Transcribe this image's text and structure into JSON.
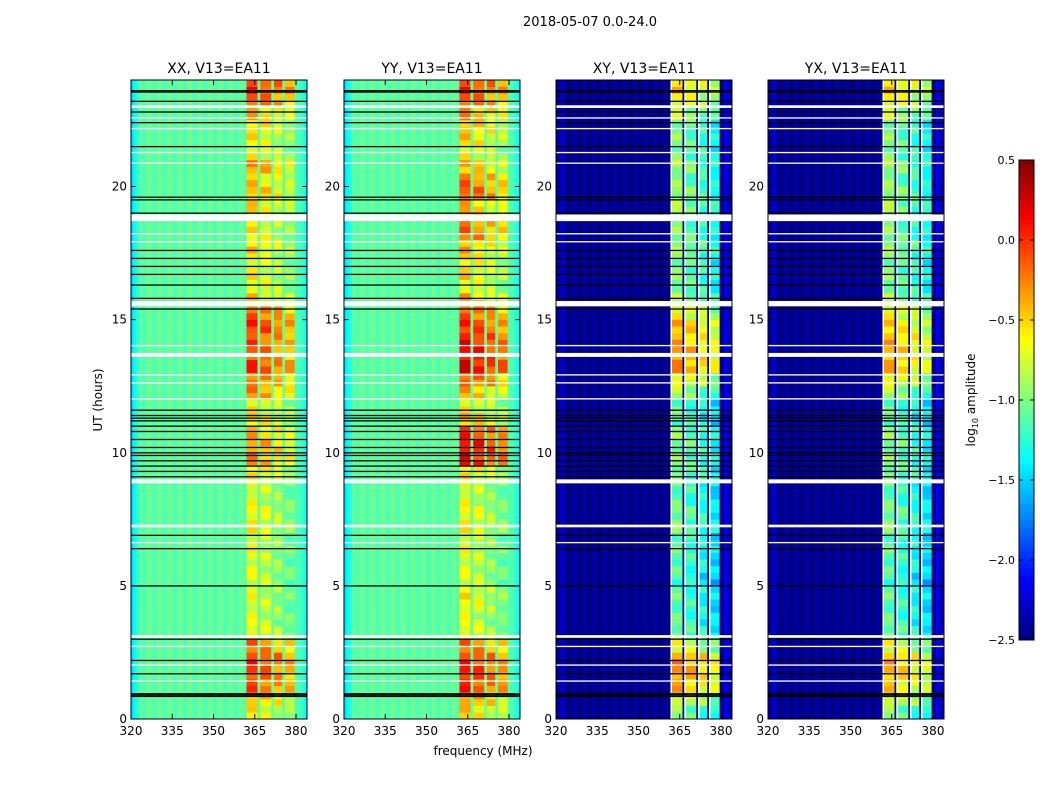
{
  "chart_data": {
    "type": "heatmap",
    "suptitle": "2018-05-07 0.0-24.0",
    "xlabel": "frequency (MHz)",
    "ylabel": "UT (hours)",
    "xlim": [
      320,
      384
    ],
    "ylim": [
      0,
      24
    ],
    "xticks": [
      320,
      335,
      350,
      365,
      380
    ],
    "xtick_labels": [
      "320",
      "335",
      "350",
      "365",
      "380"
    ],
    "yticks": [
      0,
      5,
      10,
      15,
      20
    ],
    "ytick_labels": [
      "0",
      "5",
      "10",
      "15",
      "20"
    ],
    "colormap": "jet",
    "colorbar": {
      "label_main": "log",
      "label_sub": "10",
      "label_rest": " amplitude",
      "range": [
        -2.5,
        0.5
      ],
      "ticks": [
        0.5,
        0.0,
        -0.5,
        -1.0,
        -1.5,
        -2.0,
        -2.5
      ],
      "tick_labels": [
        "0.5",
        "0.0",
        "−0.5",
        "−1.0",
        "−1.5",
        "−2.0",
        "−2.5"
      ]
    },
    "rfi_subbands_mhz": [
      [
        362,
        366
      ],
      [
        367,
        371
      ],
      [
        372,
        375
      ],
      [
        376,
        379.5
      ]
    ],
    "time_bin_hours": 0.5,
    "flagged_white_hours": [
      [
        22.95,
        23.05
      ],
      [
        22.55,
        22.6
      ],
      [
        22.15,
        22.2
      ],
      [
        21.25,
        21.3
      ],
      [
        20.85,
        20.9
      ],
      [
        18.7,
        18.95
      ],
      [
        18.2,
        18.25
      ],
      [
        17.9,
        17.95
      ],
      [
        15.5,
        15.7
      ],
      [
        14.0,
        14.05
      ],
      [
        13.6,
        13.75
      ],
      [
        12.9,
        12.95
      ],
      [
        12.6,
        12.65
      ],
      [
        12.0,
        12.05
      ],
      [
        8.85,
        9.0
      ],
      [
        7.2,
        7.3
      ],
      [
        6.6,
        6.65
      ],
      [
        3.05,
        3.15
      ],
      [
        2.7,
        2.75
      ],
      [
        2.0,
        2.05
      ],
      [
        1.4,
        1.45
      ]
    ],
    "flagged_black_hours": [
      23.6,
      23.55,
      23.2,
      22.8,
      22.4,
      21.5,
      19.6,
      19.5,
      19.0,
      17.6,
      17.3,
      17.0,
      16.7,
      16.3,
      15.8,
      15.4,
      11.6,
      11.4,
      11.3,
      11.2,
      11.0,
      10.8,
      10.5,
      10.2,
      10.0,
      9.9,
      9.7,
      9.5,
      9.3,
      9.1,
      6.9,
      6.4,
      5.0,
      3.0,
      2.2,
      1.7,
      0.95,
      0.9,
      0.85
    ],
    "panels": [
      {
        "title": "XX, V13=EA11",
        "background": -1.1,
        "edge": -1.45,
        "rfi": [
          -0.6,
          -0.4,
          -0.1,
          -0.05,
          0.0,
          -0.2,
          -0.6,
          -0.7,
          -0.7,
          -0.7,
          -0.7,
          -0.7,
          -0.7,
          -0.7,
          -0.6,
          -0.6,
          -0.7,
          -0.7,
          -0.5,
          -0.3,
          -0.3,
          -0.4,
          -0.5,
          -0.6,
          -0.3,
          -0.2,
          0.0,
          -0.1,
          -0.1,
          0.0,
          -0.1,
          -0.5,
          -0.6,
          -0.6,
          -0.6,
          -0.5,
          -0.6,
          -0.6,
          -0.5,
          -0.4,
          -0.5,
          -0.3,
          -0.6,
          -0.6,
          -0.5,
          -0.4,
          -0.1,
          0.0
        ]
      },
      {
        "title": "YY, V13=EA11",
        "background": -1.1,
        "edge": -1.45,
        "rfi": [
          -0.5,
          -0.3,
          0.0,
          0.05,
          0.0,
          -0.2,
          -0.6,
          -0.7,
          -0.6,
          -0.6,
          -0.7,
          -0.7,
          -0.7,
          -0.7,
          -0.6,
          -0.6,
          -0.7,
          -0.7,
          -0.5,
          0.1,
          0.15,
          0.0,
          -0.4,
          -0.6,
          -0.4,
          -0.1,
          0.2,
          0.15,
          0.1,
          0.0,
          -0.1,
          -0.4,
          -0.6,
          -0.5,
          -0.5,
          -0.4,
          -0.2,
          -0.2,
          -0.4,
          -0.1,
          -0.2,
          -0.4,
          -0.6,
          -0.5,
          -0.4,
          -0.3,
          -0.1,
          0.0
        ]
      },
      {
        "title": "XY, V13=EA11",
        "background": -2.45,
        "edge": -2.45,
        "rfi": [
          -1.0,
          -0.7,
          -0.4,
          -0.3,
          -0.3,
          -0.7,
          -1.0,
          -1.1,
          -1.1,
          -1.1,
          -1.2,
          -1.1,
          -1.1,
          -1.1,
          -1.0,
          -1.0,
          -1.1,
          -1.1,
          -1.0,
          -1.0,
          -1.0,
          -1.0,
          -1.1,
          -1.1,
          -0.9,
          -0.6,
          -0.3,
          -0.3,
          -0.4,
          -0.4,
          -0.6,
          -0.9,
          -1.0,
          -1.0,
          -1.0,
          -0.9,
          -1.0,
          -1.0,
          -0.9,
          -0.9,
          -1.0,
          -0.9,
          -1.0,
          -1.0,
          -1.0,
          -0.8,
          -0.6,
          -0.5
        ]
      },
      {
        "title": "YX, V13=EA11",
        "background": -2.45,
        "edge": -2.45,
        "rfi": [
          -1.0,
          -0.7,
          -0.5,
          -0.4,
          -0.4,
          -0.7,
          -1.0,
          -1.1,
          -1.1,
          -1.1,
          -1.2,
          -1.1,
          -1.1,
          -1.1,
          -1.0,
          -1.0,
          -1.1,
          -1.1,
          -1.0,
          -1.0,
          -1.0,
          -1.0,
          -1.1,
          -1.1,
          -0.9,
          -0.6,
          -0.4,
          -0.4,
          -0.4,
          -0.5,
          -0.6,
          -0.9,
          -1.0,
          -1.0,
          -1.0,
          -0.9,
          -1.0,
          -1.0,
          -0.9,
          -0.9,
          -1.0,
          -0.9,
          -1.0,
          -1.0,
          -1.0,
          -0.8,
          -0.6,
          -0.5
        ]
      }
    ]
  }
}
